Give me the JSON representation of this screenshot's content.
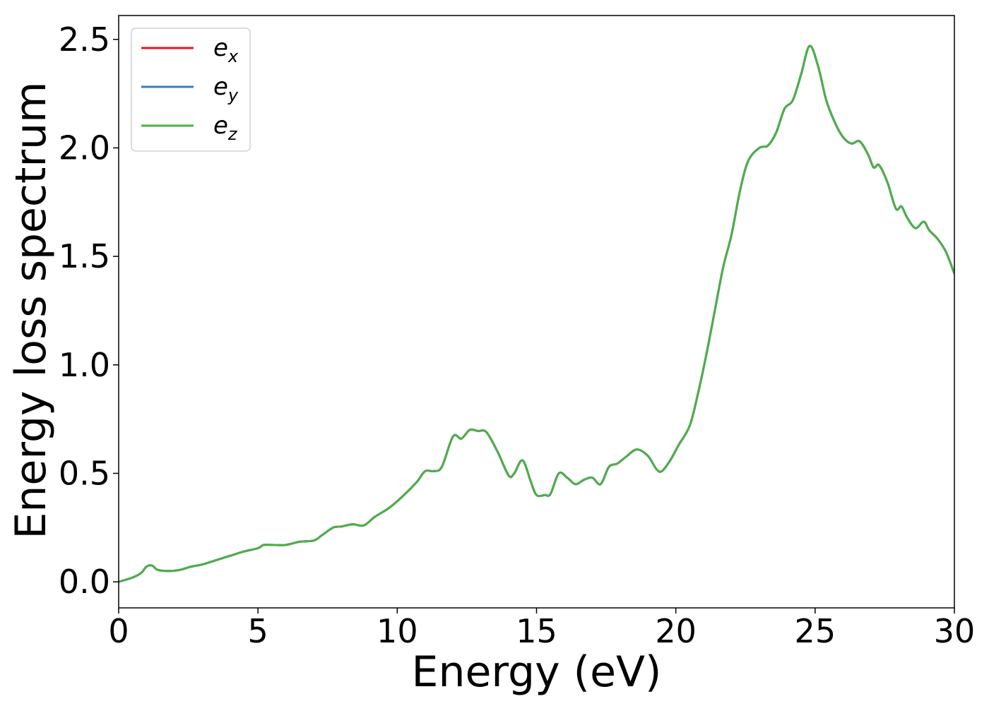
{
  "chart_data": {
    "type": "line",
    "title": "",
    "xlabel": "Energy (eV)",
    "ylabel": "Energy loss spectrum",
    "xlim": [
      0,
      30
    ],
    "ylim": [
      -0.12,
      2.61
    ],
    "xticks": [
      0,
      5,
      10,
      15,
      20,
      25,
      30
    ],
    "xtick_labels": [
      "0",
      "5",
      "10",
      "15",
      "20",
      "25",
      "30"
    ],
    "yticks": [
      0.0,
      0.5,
      1.0,
      1.5,
      2.0,
      2.5
    ],
    "ytick_labels": [
      "0.0",
      "0.5",
      "1.0",
      "1.5",
      "2.0",
      "2.5"
    ],
    "grid": false,
    "legend": "top-left",
    "colors": {
      "ex": "#e41a1c",
      "ey": "#377eb8",
      "ez": "#4daf4a"
    },
    "series": [
      {
        "key": "ex",
        "name_base": "e",
        "name_sub": "x",
        "color": "#e41a1c"
      },
      {
        "key": "ey",
        "name_base": "e",
        "name_sub": "y",
        "color": "#377eb8"
      },
      {
        "key": "ez",
        "name_base": "e",
        "name_sub": "z",
        "color": "#4daf4a"
      }
    ],
    "x": [
      0,
      0.5,
      0.8,
      1.0,
      1.2,
      1.4,
      1.8,
      2.2,
      2.6,
      3.0,
      3.5,
      4.0,
      4.5,
      5.0,
      5.2,
      5.5,
      6.0,
      6.5,
      7.0,
      7.3,
      7.7,
      8.0,
      8.4,
      8.8,
      9.2,
      9.7,
      10.2,
      10.7,
      11.0,
      11.3,
      11.6,
      12.0,
      12.3,
      12.6,
      12.9,
      13.2,
      13.6,
      14.0,
      14.2,
      14.5,
      14.8,
      15.0,
      15.3,
      15.5,
      15.8,
      16.1,
      16.4,
      16.7,
      17.0,
      17.3,
      17.6,
      17.9,
      18.2,
      18.6,
      19.0,
      19.3,
      19.5,
      19.8,
      20.1,
      20.5,
      20.8,
      21.1,
      21.4,
      21.7,
      22.0,
      22.3,
      22.6,
      23.0,
      23.3,
      23.6,
      23.9,
      24.2,
      24.5,
      24.8,
      25.1,
      25.4,
      25.7,
      26.0,
      26.3,
      26.6,
      26.9,
      27.1,
      27.3,
      27.6,
      27.9,
      28.1,
      28.3,
      28.6,
      28.9,
      29.1,
      29.4,
      29.7,
      30.0
    ],
    "values": [
      0.0,
      0.02,
      0.04,
      0.07,
      0.075,
      0.055,
      0.05,
      0.055,
      0.07,
      0.08,
      0.1,
      0.12,
      0.14,
      0.155,
      0.17,
      0.17,
      0.17,
      0.185,
      0.19,
      0.215,
      0.25,
      0.255,
      0.265,
      0.26,
      0.3,
      0.34,
      0.395,
      0.46,
      0.51,
      0.51,
      0.53,
      0.67,
      0.66,
      0.7,
      0.695,
      0.69,
      0.6,
      0.49,
      0.5,
      0.56,
      0.46,
      0.4,
      0.4,
      0.405,
      0.5,
      0.48,
      0.45,
      0.47,
      0.48,
      0.45,
      0.53,
      0.545,
      0.575,
      0.61,
      0.58,
      0.52,
      0.51,
      0.56,
      0.63,
      0.72,
      0.87,
      1.05,
      1.25,
      1.45,
      1.6,
      1.8,
      1.94,
      2.0,
      2.01,
      2.07,
      2.18,
      2.22,
      2.34,
      2.47,
      2.38,
      2.22,
      2.12,
      2.05,
      2.02,
      2.03,
      1.97,
      1.91,
      1.92,
      1.84,
      1.72,
      1.73,
      1.68,
      1.63,
      1.66,
      1.62,
      1.58,
      1.52,
      1.42
    ]
  }
}
